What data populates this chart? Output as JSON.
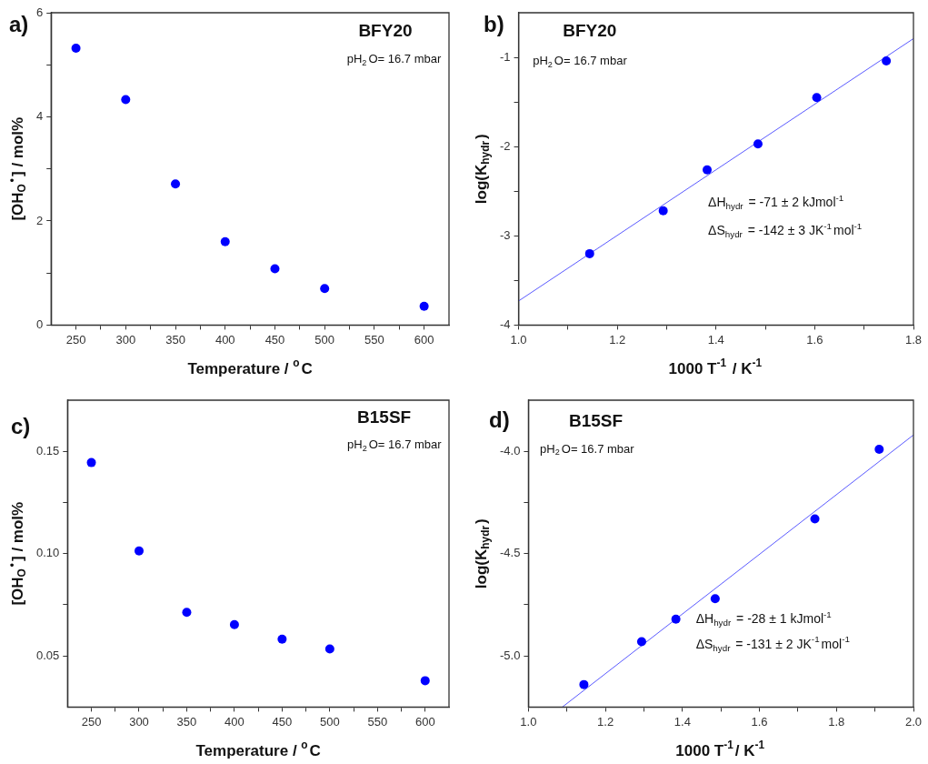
{
  "chart_data": [
    {
      "type": "scatter",
      "xlabel": "Temperature / $^{o}$C",
      "ylabel": "[OH$_{O}$$^{•}$] / mol%",
      "annotations": [
        "a)",
        "BFY20",
        "pH$_{2}$O= 16.7 mbar"
      ],
      "xlim": [
        225,
        625
      ],
      "ylim": [
        0,
        6
      ],
      "xticks": [
        250,
        {
          "value": 275,
          "label": null
        },
        300,
        {
          "value": 325,
          "label": null
        },
        350,
        {
          "value": 375,
          "label": null
        },
        400,
        {
          "value": 425,
          "label": null
        },
        450,
        {
          "value": 475,
          "label": null
        },
        500,
        {
          "value": 525,
          "label": null
        },
        550,
        {
          "value": 575,
          "label": null
        },
        600
      ],
      "yticks": [
        0,
        {
          "value": 1,
          "label": null
        },
        2,
        {
          "value": 3,
          "label": null
        },
        4,
        {
          "value": 5,
          "label": null
        },
        6
      ],
      "marker": "circle",
      "x": [
        250,
        300,
        350,
        400,
        450,
        500,
        600
      ],
      "series": [
        {
          "color": "#0000ff",
          "values": [
            5.32,
            4.33,
            2.71,
            1.6,
            1.08,
            0.7,
            0.36
          ]
        }
      ]
    },
    {
      "type": "scatter",
      "xlabel": "1000 T$^{-1}$ / K$^{-1}$",
      "ylabel": "log(K$_{hydr}$)",
      "annotations": [
        "b)",
        "BFY20",
        "pH$_{2}$O= 16.7 mbar",
        "ΔH$_{hydr}$ = -71 ± 2 kJmol$^{-1}$",
        "ΔS$_{hydr}$ = -142 ± 3 JK$^{-1}$mol$^{-1}$"
      ],
      "xlim": [
        1.0,
        1.8
      ],
      "ylim": [
        -4,
        -0.5
      ],
      "xticks": [
        {
          "value": 1.0,
          "label": "1.0"
        },
        {
          "value": 1.1,
          "label": null
        },
        {
          "value": 1.2,
          "label": "1.2"
        },
        {
          "value": 1.3,
          "label": null
        },
        {
          "value": 1.4,
          "label": "1.4"
        },
        {
          "value": 1.5,
          "label": null
        },
        {
          "value": 1.6,
          "label": "1.6"
        },
        {
          "value": 1.7,
          "label": null
        },
        {
          "value": 1.8,
          "label": "1.8"
        }
      ],
      "yticks": [
        -4,
        {
          "value": -3.5,
          "label": null
        },
        -3,
        {
          "value": -2.5,
          "label": null
        },
        -2,
        {
          "value": -1.5,
          "label": null
        },
        -1
      ],
      "marker": "circle",
      "x": [
        1.144,
        1.293,
        1.382,
        1.485,
        1.604,
        1.745
      ],
      "series": [
        {
          "color": "#0000ff",
          "values": [
            -3.2,
            -2.72,
            -2.26,
            -1.97,
            -1.45,
            -1.04
          ]
        },
        {
          "type": "line",
          "marker": "none",
          "color": "#5a5aff",
          "x": [
            1.0,
            1.8
          ],
          "values": [
            -3.73,
            -0.79
          ]
        }
      ]
    },
    {
      "type": "scatter",
      "xlabel": "Temperature / $^{o}$C",
      "ylabel": "[OH$_{O}$$^{•}$] / mol%",
      "annotations": [
        "c)",
        "B15SF",
        "pH$_{2}$O= 16.7 mbar"
      ],
      "xlim": [
        225,
        625
      ],
      "ylim": [
        0.025,
        0.175
      ],
      "xticks": [
        250,
        {
          "value": 275,
          "label": null
        },
        300,
        {
          "value": 325,
          "label": null
        },
        350,
        {
          "value": 375,
          "label": null
        },
        400,
        {
          "value": 425,
          "label": null
        },
        450,
        {
          "value": 475,
          "label": null
        },
        500,
        {
          "value": 525,
          "label": null
        },
        550,
        {
          "value": 575,
          "label": null
        },
        600
      ],
      "yticks": [
        0.05,
        {
          "value": 0.075,
          "label": null
        },
        {
          "value": 0.1,
          "label": "0.10"
        },
        {
          "value": 0.125,
          "label": null
        },
        0.15
      ],
      "marker": "circle",
      "x": [
        250,
        300,
        350,
        400,
        450,
        500,
        600
      ],
      "series": [
        {
          "color": "#0000ff",
          "values": [
            0.1445,
            0.1013,
            0.0713,
            0.0653,
            0.0582,
            0.0534,
            0.0379
          ]
        }
      ]
    },
    {
      "type": "scatter",
      "xlabel": "1000 T$^{-1}$/ K$^{-1}$",
      "ylabel": "log(K$_{hydr}$)",
      "annotations": [
        "d)",
        "B15SF",
        "pH$_{2}$O= 16.7 mbar",
        "ΔH$_{hydr}$ = -28 ± 1 kJmol$^{-1}$",
        "ΔS$_{hydr}$ = -131 ± 2 JK$^{-1}$mol$^{-1}$"
      ],
      "xlim": [
        1.0,
        2.0
      ],
      "ylim": [
        -5.25,
        -3.75
      ],
      "xticks": [
        {
          "value": 1.0,
          "label": "1.0"
        },
        {
          "value": 1.1,
          "label": null
        },
        {
          "value": 1.2,
          "label": "1.2"
        },
        {
          "value": 1.3,
          "label": null
        },
        {
          "value": 1.4,
          "label": "1.4"
        },
        {
          "value": 1.5,
          "label": null
        },
        {
          "value": 1.6,
          "label": "1.6"
        },
        {
          "value": 1.7,
          "label": null
        },
        {
          "value": 1.8,
          "label": "1.8"
        },
        {
          "value": 1.9,
          "label": null
        },
        {
          "value": 2.0,
          "label": "2.0"
        }
      ],
      "yticks": [
        {
          "value": -5,
          "label": "-5.0"
        },
        {
          "value": -4.75,
          "label": null
        },
        {
          "value": -4.5,
          "label": "-4.5"
        },
        {
          "value": -4.25,
          "label": null
        },
        {
          "value": -4,
          "label": "-4.0"
        }
      ],
      "marker": "circle",
      "x": [
        1.144,
        1.294,
        1.383,
        1.485,
        1.744,
        1.911
      ],
      "series": [
        {
          "color": "#0000ff",
          "values": [
            -5.14,
            -4.93,
            -4.82,
            -4.72,
            -4.33,
            -3.99
          ]
        },
        {
          "type": "line",
          "marker": "none",
          "color": "#5a5aff",
          "x": [
            1.088,
            2.0
          ],
          "values": [
            -5.25,
            -3.92
          ]
        }
      ]
    }
  ]
}
